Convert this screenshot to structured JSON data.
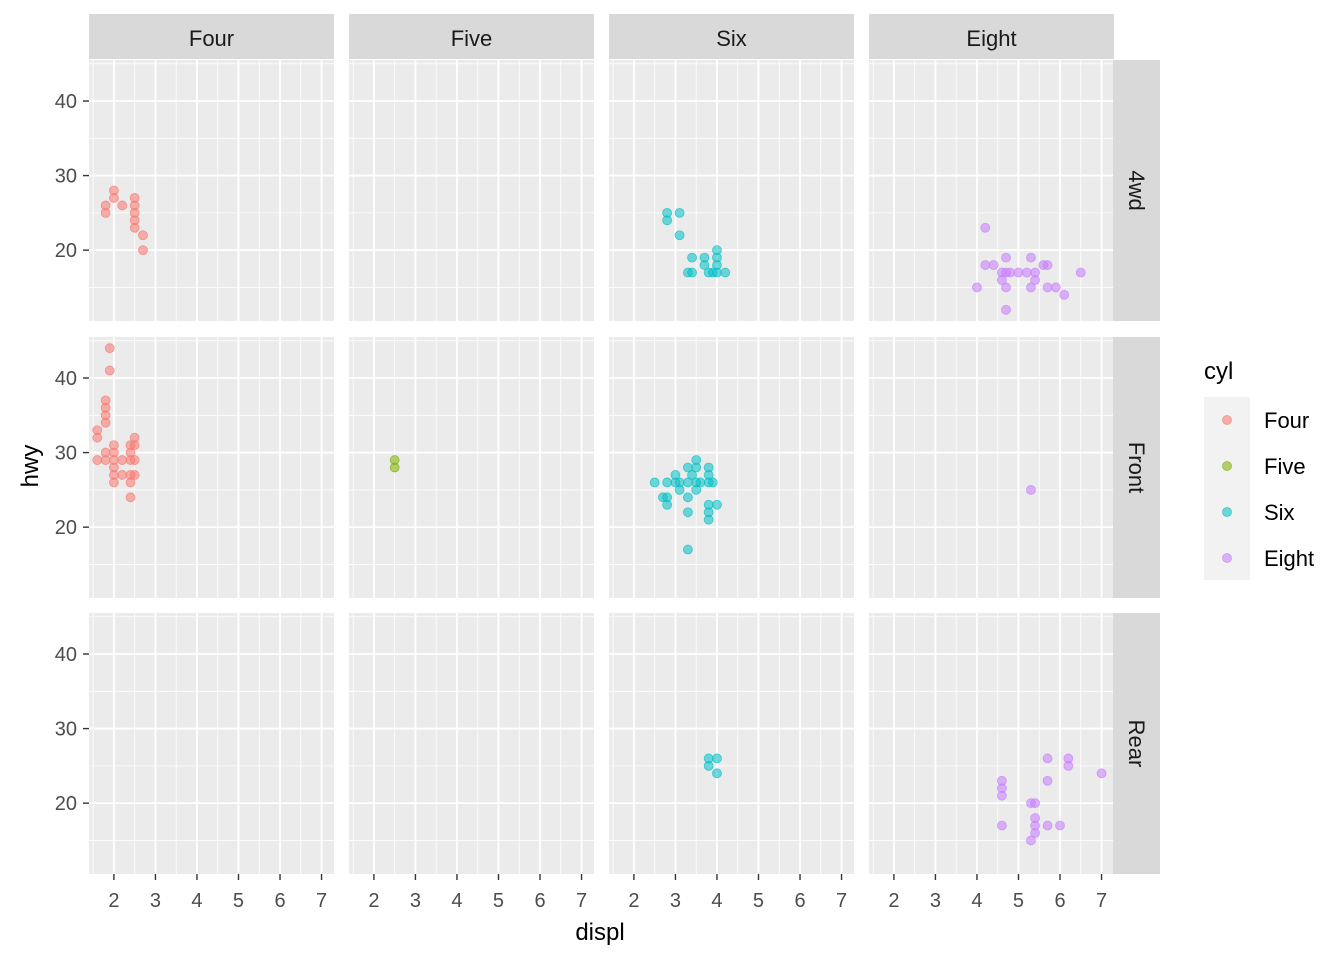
{
  "chart_data": {
    "type": "scatter",
    "facet_type": "grid",
    "x": "displ",
    "y": "hwy",
    "xlabel": "displ",
    "ylabel": "hwy",
    "xlim": [
      1.4,
      7.3
    ],
    "ylim": [
      10.5,
      45.5
    ],
    "x_ticks": [
      2,
      3,
      4,
      5,
      6,
      7
    ],
    "y_ticks": [
      20,
      30,
      40
    ],
    "col_facets": [
      "Four",
      "Five",
      "Six",
      "Eight"
    ],
    "row_facets": [
      "4wd",
      "Front",
      "Rear"
    ],
    "legend": {
      "title": "cyl",
      "position": "right",
      "entries": [
        {
          "label": "Four",
          "color": "#F8766D"
        },
        {
          "label": "Five",
          "color": "#7CAE00"
        },
        {
          "label": "Six",
          "color": "#00BFC4"
        },
        {
          "label": "Eight",
          "color": "#C77CFF"
        }
      ]
    },
    "panels": [
      {
        "row": "4wd",
        "col": "Four",
        "points": [
          [
            1.8,
            25
          ],
          [
            1.8,
            26
          ],
          [
            2,
            27
          ],
          [
            2,
            28
          ],
          [
            2.2,
            26
          ],
          [
            2.5,
            27
          ],
          [
            2.5,
            26
          ],
          [
            2.5,
            25
          ],
          [
            2.5,
            24
          ],
          [
            2.5,
            23
          ],
          [
            2.7,
            22
          ],
          [
            2.7,
            20
          ]
        ]
      },
      {
        "row": "4wd",
        "col": "Five",
        "points": []
      },
      {
        "row": "4wd",
        "col": "Six",
        "points": [
          [
            2.8,
            25
          ],
          [
            2.8,
            24
          ],
          [
            3.1,
            25
          ],
          [
            3.1,
            22
          ],
          [
            3.3,
            17
          ],
          [
            3.4,
            17
          ],
          [
            3.4,
            19
          ],
          [
            3.7,
            19
          ],
          [
            3.7,
            18
          ],
          [
            3.8,
            17
          ],
          [
            3.9,
            17
          ],
          [
            4,
            17
          ],
          [
            4,
            18
          ],
          [
            4,
            19
          ],
          [
            4,
            20
          ],
          [
            4.2,
            17
          ]
        ]
      },
      {
        "row": "4wd",
        "col": "Eight",
        "points": [
          [
            4,
            15
          ],
          [
            4.2,
            23
          ],
          [
            4.2,
            18
          ],
          [
            4.4,
            18
          ],
          [
            4.6,
            16
          ],
          [
            4.6,
            17
          ],
          [
            4.7,
            19
          ],
          [
            4.7,
            17
          ],
          [
            4.7,
            15
          ],
          [
            4.7,
            12
          ],
          [
            4.8,
            17
          ],
          [
            5,
            17
          ],
          [
            5.2,
            17
          ],
          [
            5.3,
            19
          ],
          [
            5.3,
            15
          ],
          [
            5.4,
            16
          ],
          [
            5.4,
            17
          ],
          [
            5.6,
            18
          ],
          [
            5.7,
            18
          ],
          [
            5.7,
            15
          ],
          [
            5.9,
            15
          ],
          [
            6.1,
            14
          ],
          [
            6.5,
            17
          ]
        ]
      },
      {
        "row": "Front",
        "col": "Four",
        "points": [
          [
            1.6,
            29
          ],
          [
            1.6,
            32
          ],
          [
            1.6,
            33
          ],
          [
            1.8,
            29
          ],
          [
            1.8,
            30
          ],
          [
            1.8,
            34
          ],
          [
            1.8,
            35
          ],
          [
            1.8,
            36
          ],
          [
            1.8,
            37
          ],
          [
            1.9,
            41
          ],
          [
            1.9,
            44
          ],
          [
            2,
            26
          ],
          [
            2,
            27
          ],
          [
            2,
            28
          ],
          [
            2,
            29
          ],
          [
            2,
            30
          ],
          [
            2,
            31
          ],
          [
            2.2,
            27
          ],
          [
            2.2,
            29
          ],
          [
            2.4,
            24
          ],
          [
            2.4,
            26
          ],
          [
            2.4,
            27
          ],
          [
            2.4,
            29
          ],
          [
            2.4,
            30
          ],
          [
            2.4,
            31
          ],
          [
            2.5,
            27
          ],
          [
            2.5,
            29
          ],
          [
            2.5,
            31
          ],
          [
            2.5,
            32
          ]
        ]
      },
      {
        "row": "Front",
        "col": "Five",
        "points": [
          [
            2.5,
            28
          ],
          [
            2.5,
            29
          ]
        ]
      },
      {
        "row": "Front",
        "col": "Six",
        "points": [
          [
            2.5,
            26
          ],
          [
            2.7,
            24
          ],
          [
            2.8,
            26
          ],
          [
            2.8,
            23
          ],
          [
            2.8,
            24
          ],
          [
            3,
            26
          ],
          [
            3,
            27
          ],
          [
            3.1,
            26
          ],
          [
            3.1,
            25
          ],
          [
            3.3,
            28
          ],
          [
            3.3,
            26
          ],
          [
            3.3,
            24
          ],
          [
            3.3,
            22
          ],
          [
            3.3,
            17
          ],
          [
            3.4,
            27
          ],
          [
            3.5,
            28
          ],
          [
            3.5,
            29
          ],
          [
            3.5,
            25
          ],
          [
            3.5,
            26
          ],
          [
            3.6,
            26
          ],
          [
            3.8,
            28
          ],
          [
            3.8,
            27
          ],
          [
            3.8,
            26
          ],
          [
            3.8,
            23
          ],
          [
            3.8,
            22
          ],
          [
            3.8,
            21
          ],
          [
            3.9,
            26
          ],
          [
            4,
            23
          ]
        ]
      },
      {
        "row": "Front",
        "col": "Eight",
        "points": [
          [
            5.3,
            25
          ]
        ]
      },
      {
        "row": "Rear",
        "col": "Four",
        "points": []
      },
      {
        "row": "Rear",
        "col": "Five",
        "points": []
      },
      {
        "row": "Rear",
        "col": "Six",
        "points": [
          [
            3.8,
            26
          ],
          [
            3.8,
            25
          ],
          [
            4,
            26
          ],
          [
            4,
            24
          ]
        ]
      },
      {
        "row": "Rear",
        "col": "Eight",
        "points": [
          [
            4.6,
            23
          ],
          [
            4.6,
            22
          ],
          [
            4.6,
            21
          ],
          [
            4.6,
            17
          ],
          [
            5.3,
            20
          ],
          [
            5.3,
            15
          ],
          [
            5.4,
            20
          ],
          [
            5.4,
            18
          ],
          [
            5.4,
            17
          ],
          [
            5.4,
            16
          ],
          [
            5.7,
            26
          ],
          [
            5.7,
            23
          ],
          [
            5.7,
            17
          ],
          [
            6,
            17
          ],
          [
            6.2,
            26
          ],
          [
            6.2,
            25
          ],
          [
            7,
            24
          ]
        ]
      }
    ]
  }
}
